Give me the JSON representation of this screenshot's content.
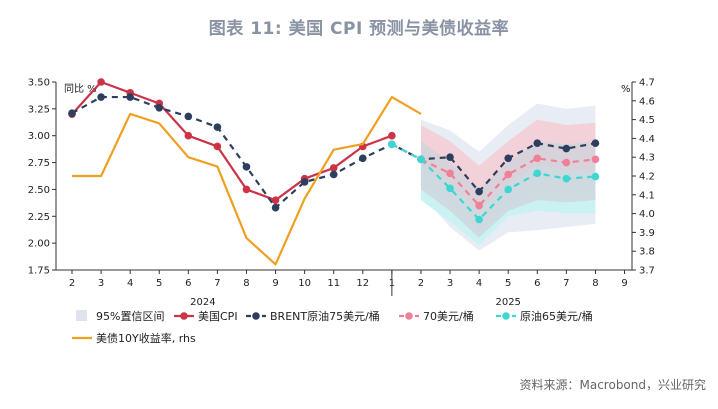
{
  "header": {
    "title": "图表 11: 美国 CPI 预测与美债收益率"
  },
  "footer": {
    "source": "资料来源：Macrobond，兴业研究"
  },
  "chart_data": {
    "type": "line",
    "left_unit": "同比 %",
    "right_unit": "%",
    "x_tick_labels": [
      "2",
      "3",
      "4",
      "5",
      "6",
      "7",
      "8",
      "9",
      "10",
      "11",
      "12",
      "1",
      "2",
      "3",
      "4",
      "5",
      "6",
      "7",
      "8",
      "9"
    ],
    "year_labels": [
      {
        "label": "2024",
        "at_index": 4.5
      },
      {
        "label": "2025",
        "at_index": 15
      }
    ],
    "left_axis": {
      "min": 1.75,
      "max": 3.5,
      "ticks": [
        "3.50",
        "3.25",
        "3.00",
        "2.75",
        "2.50",
        "2.25",
        "2.00",
        "1.75"
      ]
    },
    "right_axis": {
      "min": 3.7,
      "max": 4.7,
      "ticks": [
        "4.7",
        "4.6",
        "4.5",
        "4.4",
        "4.3",
        "4.2",
        "4.1",
        "4.0",
        "3.9",
        "3.8",
        "3.7"
      ]
    },
    "legend": [
      "95%置信区间",
      "美国CPI",
      "BRENT原油75美元/桶",
      "70美元/桶",
      "原油65美元/桶",
      "美债10Y收益率, rhs"
    ],
    "series": [
      {
        "name": "美国CPI",
        "axis": "left",
        "color": "#cc3347",
        "marker": "circle",
        "x": [
          0,
          1,
          2,
          3,
          4,
          5,
          6,
          7,
          8,
          9,
          10,
          11
        ],
        "y": [
          3.2,
          3.5,
          3.4,
          3.3,
          3.0,
          2.9,
          2.5,
          2.4,
          2.6,
          2.7,
          2.9,
          3.0
        ]
      },
      {
        "name": "BRENT原油75美元/桶",
        "axis": "left",
        "color": "#2d3e5e",
        "marker": "circle",
        "dash": true,
        "x": [
          0,
          1,
          2,
          3,
          4,
          5,
          6,
          7,
          8,
          9,
          10,
          11,
          12,
          13,
          14,
          15,
          16,
          17,
          18
        ],
        "y": [
          3.21,
          3.36,
          3.36,
          3.26,
          3.18,
          3.08,
          2.71,
          2.33,
          2.57,
          2.64,
          2.79,
          2.92,
          2.78,
          2.8,
          2.48,
          2.79,
          2.93,
          2.88,
          2.93
        ]
      },
      {
        "name": "70美元/桶",
        "axis": "left",
        "color": "#f07f98",
        "marker": "circle",
        "dash": true,
        "x": [
          11,
          12,
          13,
          14,
          15,
          16,
          17,
          18
        ],
        "y": [
          2.92,
          2.78,
          2.65,
          2.35,
          2.64,
          2.79,
          2.75,
          2.78
        ]
      },
      {
        "name": "原油65美元/桶",
        "axis": "left",
        "color": "#3fd6d2",
        "marker": "circle",
        "dash": true,
        "x": [
          11,
          12,
          13,
          14,
          15,
          16,
          17,
          18
        ],
        "y": [
          2.92,
          2.78,
          2.51,
          2.22,
          2.5,
          2.65,
          2.6,
          2.62
        ]
      },
      {
        "name": "美债10Y收益率, rhs",
        "axis": "right",
        "color": "#f0a020",
        "marker": "none",
        "x": [
          0,
          1,
          2,
          3,
          4,
          5,
          6,
          7,
          8,
          9,
          10,
          11,
          12
        ],
        "y": [
          4.2,
          4.2,
          4.53,
          4.48,
          4.3,
          4.25,
          3.87,
          3.73,
          4.08,
          4.34,
          4.37,
          4.62,
          4.53
        ]
      }
    ],
    "confidence_band": {
      "name": "95%置信区间",
      "color": "#e8ecf5",
      "x": [
        12,
        13,
        14,
        15,
        16,
        17,
        18
      ],
      "upper": [
        3.15,
        3.05,
        2.85,
        3.1,
        3.3,
        3.25,
        3.28
      ],
      "lower": [
        2.45,
        2.15,
        1.93,
        2.1,
        2.12,
        2.15,
        2.18
      ],
      "inner_band_red": {
        "color": "#f3cfd5",
        "upper": [
          3.1,
          2.95,
          2.72,
          2.95,
          3.15,
          3.1,
          3.12
        ],
        "lower": [
          2.55,
          2.38,
          2.1,
          2.33,
          2.48,
          2.47,
          2.48
        ]
      },
      "inner_band_cyan": {
        "color": "#c6f3f2",
        "upper": [
          2.75,
          2.55,
          2.3,
          2.55,
          2.72,
          2.68,
          2.68
        ],
        "lower": [
          2.4,
          2.2,
          1.98,
          2.25,
          2.3,
          2.28,
          2.28
        ]
      },
      "inner_band_grey": {
        "color": "#cfd3db",
        "upper": [
          2.95,
          2.75,
          2.5,
          2.75,
          2.95,
          2.92,
          2.95
        ],
        "lower": [
          2.5,
          2.3,
          2.05,
          2.3,
          2.4,
          2.38,
          2.4
        ]
      }
    }
  }
}
